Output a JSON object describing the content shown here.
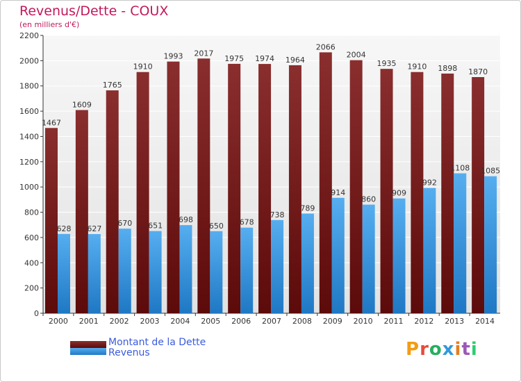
{
  "chart_data": {
    "type": "bar",
    "title": "Revenus/Dette - COUX",
    "subtitle": "(en milliers d'€)",
    "categories": [
      "2000",
      "2001",
      "2002",
      "2003",
      "2004",
      "2005",
      "2006",
      "2007",
      "2008",
      "2009",
      "2010",
      "2011",
      "2012",
      "2013",
      "2014"
    ],
    "series": [
      {
        "name": "Montant de la Dette",
        "color": "#7a1a1a",
        "values": [
          1467,
          1609,
          1765,
          1910,
          1993,
          2017,
          1975,
          1974,
          1964,
          2066,
          2004,
          1935,
          1910,
          1898,
          1870
        ]
      },
      {
        "name": "Revenus",
        "color": "#3d9be9",
        "values": [
          628,
          627,
          670,
          651,
          698,
          650,
          678,
          738,
          789,
          914,
          860,
          909,
          992,
          1108,
          1085
        ]
      }
    ],
    "y_ticks": [
      "0",
      "200",
      "400",
      "600",
      "800",
      "1000",
      "1200",
      "1400",
      "1600",
      "1800",
      "2000",
      "2200"
    ],
    "ylim": [
      0,
      2200
    ],
    "grid": true,
    "legend_position": "bottom-left"
  },
  "logo": {
    "text": "Proxiti",
    "letter_colors": [
      "#f39c12",
      "#e74c3c",
      "#27ae60",
      "#3498db",
      "#e67e22",
      "#9b59b6",
      "#2ecc71"
    ]
  }
}
